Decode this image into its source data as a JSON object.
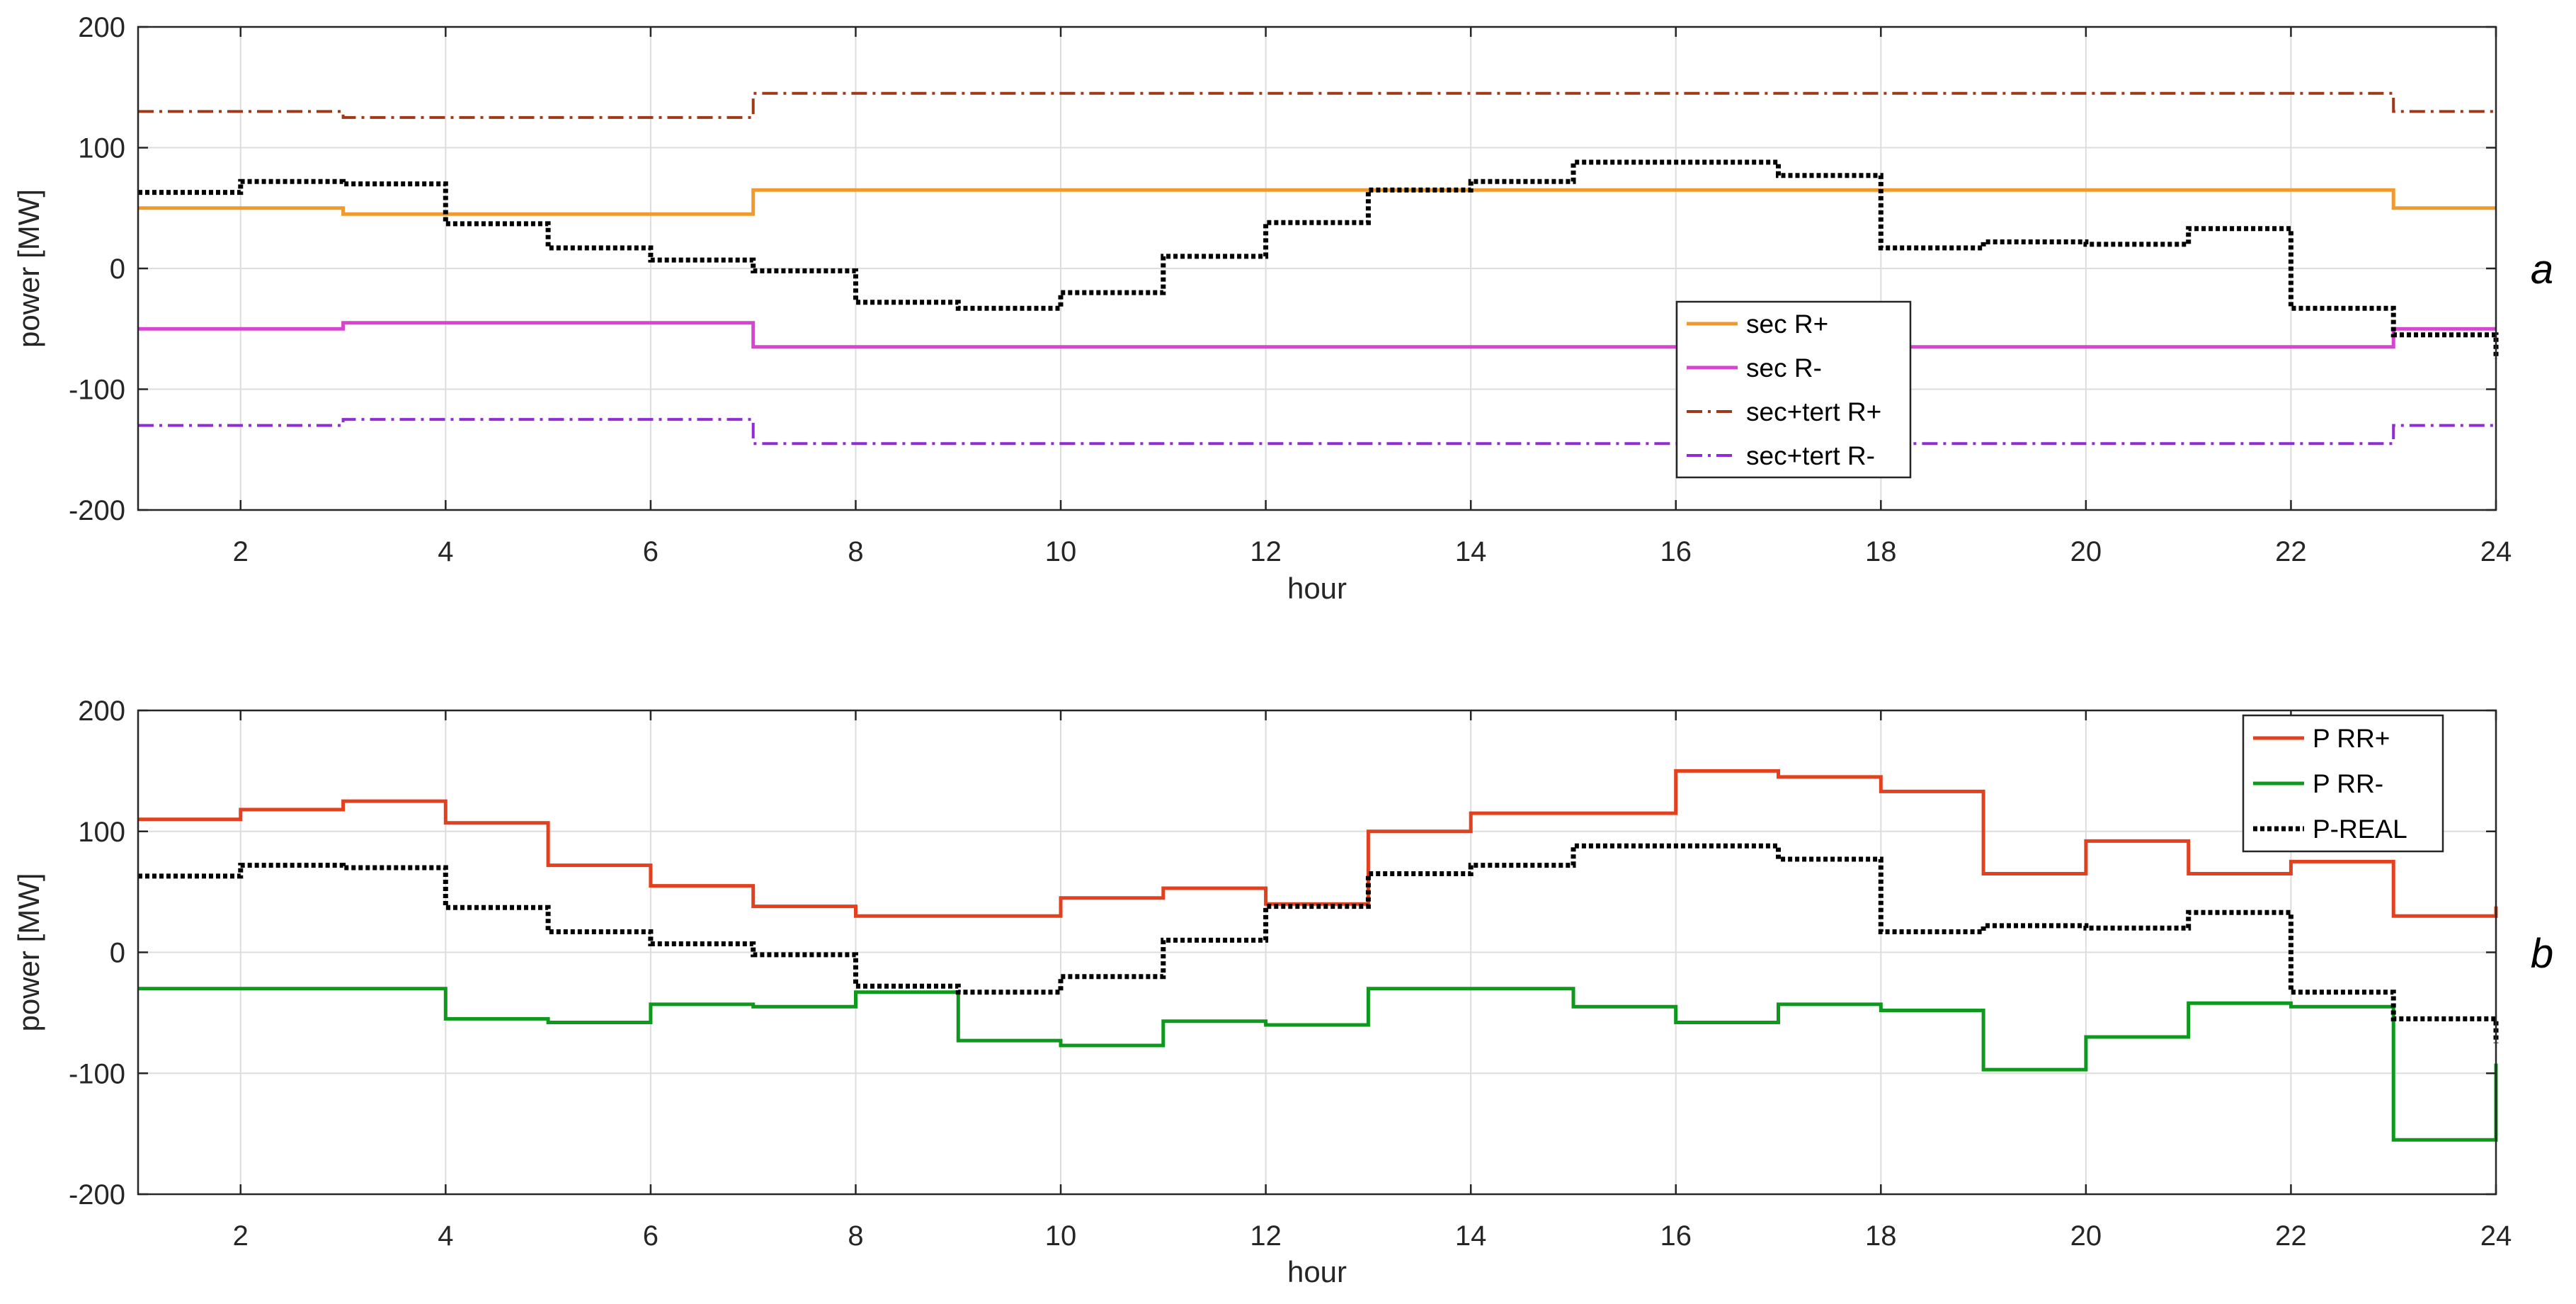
{
  "chart_data": [
    {
      "type": "line",
      "step": true,
      "panel_label": "a",
      "title": "",
      "xlabel": "hour",
      "ylabel": "power [MW]",
      "xlim": [
        1,
        24
      ],
      "ylim": [
        -200,
        200
      ],
      "x_ticks": [
        2,
        4,
        6,
        8,
        10,
        12,
        14,
        16,
        18,
        20,
        22,
        24
      ],
      "y_ticks": [
        200,
        100,
        0,
        -100,
        -200
      ],
      "grid": true,
      "legend_position": "lower-right",
      "x": [
        1,
        2,
        3,
        4,
        5,
        6,
        7,
        8,
        9,
        10,
        11,
        12,
        13,
        14,
        15,
        16,
        17,
        18,
        19,
        20,
        21,
        22,
        23,
        24
      ],
      "series": [
        {
          "name": "sec R+",
          "color": "#ef9a2e",
          "style": "solid",
          "values": [
            50,
            50,
            45,
            45,
            45,
            45,
            65,
            65,
            65,
            65,
            65,
            65,
            65,
            65,
            65,
            65,
            65,
            65,
            65,
            65,
            65,
            65,
            50,
            50
          ]
        },
        {
          "name": "sec R-",
          "color": "#d645d0",
          "style": "solid",
          "values": [
            -50,
            -50,
            -45,
            -45,
            -45,
            -45,
            -65,
            -65,
            -65,
            -65,
            -65,
            -65,
            -65,
            -65,
            -65,
            -65,
            -65,
            -65,
            -65,
            -65,
            -65,
            -65,
            -50,
            -50
          ]
        },
        {
          "name": "sec+tert R+",
          "color": "#9e3a1a",
          "style": "dashdot",
          "values": [
            130,
            130,
            125,
            125,
            125,
            125,
            145,
            145,
            145,
            145,
            145,
            145,
            145,
            145,
            145,
            145,
            145,
            145,
            145,
            145,
            145,
            145,
            130,
            130
          ]
        },
        {
          "name": "sec+tert R-",
          "color": "#8f2bd8",
          "style": "dashdot",
          "values": [
            -130,
            -130,
            -125,
            -125,
            -125,
            -125,
            -145,
            -145,
            -145,
            -145,
            -145,
            -145,
            -145,
            -145,
            -145,
            -145,
            -145,
            -145,
            -145,
            -145,
            -145,
            -145,
            -130,
            -130
          ]
        },
        {
          "name": "P-REAL",
          "color": "#000000",
          "style": "dotted",
          "in_legend": false,
          "values": [
            63,
            72,
            70,
            37,
            17,
            7,
            -2,
            -28,
            -33,
            -20,
            10,
            38,
            65,
            72,
            88,
            88,
            77,
            17,
            22,
            20,
            33,
            -33,
            -55,
            -75
          ]
        }
      ]
    },
    {
      "type": "line",
      "step": true,
      "panel_label": "b",
      "title": "",
      "xlabel": "hour",
      "ylabel": "power [MW]",
      "xlim": [
        1,
        24
      ],
      "ylim": [
        -200,
        200
      ],
      "x_ticks": [
        2,
        4,
        6,
        8,
        10,
        12,
        14,
        16,
        18,
        20,
        22,
        24
      ],
      "y_ticks": [
        200,
        100,
        0,
        -100,
        -200
      ],
      "grid": true,
      "legend_position": "top-right",
      "x": [
        1,
        2,
        3,
        4,
        5,
        6,
        7,
        8,
        9,
        10,
        11,
        12,
        13,
        14,
        15,
        16,
        17,
        18,
        19,
        20,
        21,
        22,
        23,
        24
      ],
      "series": [
        {
          "name": "P RR+",
          "color": "#e2401f",
          "style": "solid",
          "values": [
            110,
            118,
            125,
            107,
            72,
            55,
            38,
            30,
            30,
            45,
            53,
            40,
            100,
            115,
            115,
            150,
            145,
            133,
            65,
            92,
            65,
            75,
            30,
            38
          ]
        },
        {
          "name": "P RR-",
          "color": "#0d9a1c",
          "style": "solid",
          "values": [
            -30,
            -30,
            -30,
            -55,
            -58,
            -43,
            -45,
            -33,
            -73,
            -77,
            -57,
            -60,
            -30,
            -30,
            -45,
            -58,
            -43,
            -48,
            -97,
            -70,
            -42,
            -45,
            -155,
            -92
          ]
        },
        {
          "name": "P-REAL",
          "color": "#000000",
          "style": "dotted",
          "values": [
            63,
            72,
            70,
            37,
            17,
            7,
            -2,
            -28,
            -33,
            -20,
            10,
            38,
            65,
            72,
            88,
            88,
            77,
            17,
            22,
            20,
            33,
            -33,
            -55,
            -75
          ]
        }
      ]
    }
  ]
}
